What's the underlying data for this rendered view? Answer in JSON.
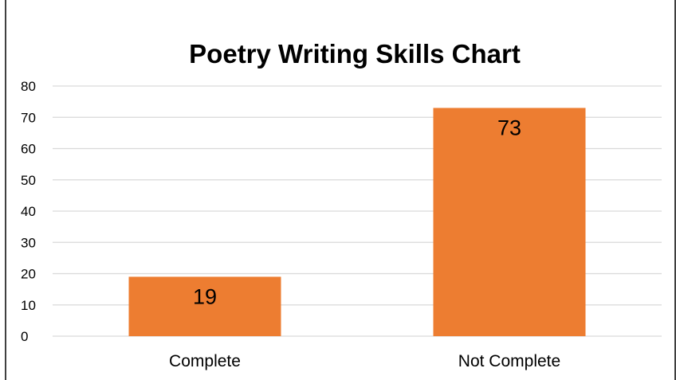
{
  "colors": {
    "bar": "#ED7D31",
    "grid": "#D9D9D9",
    "text": "#000000",
    "border": "#000000",
    "background": "#FFFFFF"
  },
  "chart_data": {
    "type": "bar",
    "title": "Poetry Writing Skills Chart",
    "xlabel": "",
    "ylabel": "",
    "categories": [
      "Complete",
      "Not Complete"
    ],
    "values": [
      19,
      73
    ],
    "data_labels": [
      "19",
      "73"
    ],
    "ylim": [
      0,
      80
    ],
    "yticks": [
      0,
      10,
      20,
      30,
      40,
      50,
      60,
      70,
      80
    ],
    "ytick_labels": [
      "0",
      "10",
      "20",
      "30",
      "40",
      "50",
      "60",
      "70",
      "80"
    ],
    "grid": true,
    "legend": "none"
  }
}
